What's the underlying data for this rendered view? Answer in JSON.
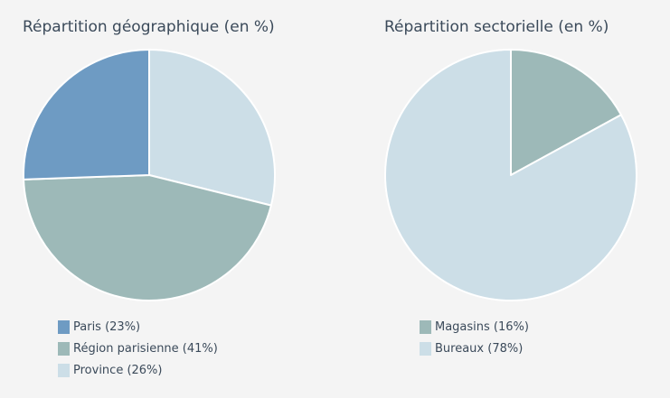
{
  "chart_data": [
    {
      "type": "pie",
      "title": "Répartition géographique (en %)",
      "slices": [
        {
          "label": "Paris",
          "value": 23,
          "legend": "Paris (23%)",
          "color": "#6e9bc3"
        },
        {
          "label": "Région parisienne",
          "value": 41,
          "legend": "Région parisienne (41%)",
          "color": "#9db9b8"
        },
        {
          "label": "Province",
          "value": 26,
          "legend": "Province (26%)",
          "color": "#ccdee7"
        }
      ],
      "start_angle_deg": 0,
      "direction": "clockwise-from-top (Province, Région parisienne, Paris)",
      "legend_position": "bottom"
    },
    {
      "type": "pie",
      "title": "Répartition sectorielle (en %)",
      "slices": [
        {
          "label": "Magasins",
          "value": 16,
          "legend": "Magasins (16%)",
          "color": "#9db9b8"
        },
        {
          "label": "Bureaux",
          "value": 78,
          "legend": "Bureaux (78%)",
          "color": "#ccdee7"
        }
      ],
      "start_angle_deg": 0,
      "direction": "clockwise-from-top (Magasins, Bureaux)",
      "legend_position": "bottom"
    }
  ],
  "colors": {
    "background": "#f4f4f4",
    "text": "#3b4a5a",
    "slice_border": "#ffffff"
  }
}
